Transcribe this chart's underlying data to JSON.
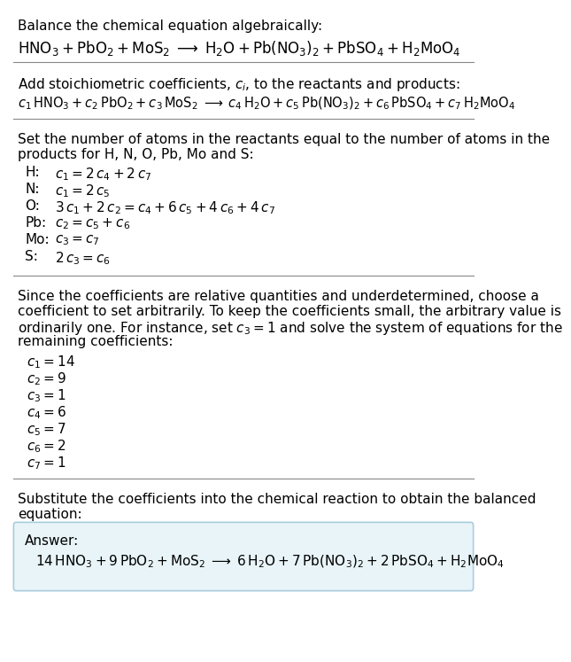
{
  "bg_color": "#ffffff",
  "text_color": "#000000",
  "section1_title": "Balance the chemical equation algebraically:",
  "section1_eq": "$\\mathrm{HNO_3 + PbO_2 + MoS_2 \\;\\longrightarrow\\; H_2O + Pb(NO_3)_2 + PbSO_4 + H_2MoO_4}$",
  "section2_title": "Add stoichiometric coefficients, $c_i$, to the reactants and products:",
  "section2_eq": "$c_1\\,\\mathrm{HNO_3} + c_2\\,\\mathrm{PbO_2} + c_3\\,\\mathrm{MoS_2} \\;\\longrightarrow\\; c_4\\,\\mathrm{H_2O} + c_5\\,\\mathrm{Pb(NO_3)_2} + c_6\\,\\mathrm{PbSO_4} + c_7\\,\\mathrm{H_2MoO_4}$",
  "section3_title": "Set the number of atoms in the reactants equal to the number of atoms in the\nproducts for H, N, O, Pb, Mo and S:",
  "equations": [
    [
      "H:",
      "$c_1 = 2\\,c_4 + 2\\,c_7$"
    ],
    [
      "N:",
      "$c_1 = 2\\,c_5$"
    ],
    [
      "O:",
      "$3\\,c_1 + 2\\,c_2 = c_4 + 6\\,c_5 + 4\\,c_6 + 4\\,c_7$"
    ],
    [
      "Pb:",
      "$c_2 = c_5 + c_6$"
    ],
    [
      "Mo:",
      "$c_3 = c_7$"
    ],
    [
      "S:",
      "$2\\,c_3 = c_6$"
    ]
  ],
  "section4_title": "Since the coefficients are relative quantities and underdetermined, choose a\ncoefficient to set arbitrarily. To keep the coefficients small, the arbitrary value is\nordinarily one. For instance, set $c_3 = 1$ and solve the system of equations for the\nremaining coefficients:",
  "coefficients": [
    "$c_1 = 14$",
    "$c_2 = 9$",
    "$c_3 = 1$",
    "$c_4 = 6$",
    "$c_5 = 7$",
    "$c_6 = 2$",
    "$c_7 = 1$"
  ],
  "section5_title": "Substitute the coefficients into the chemical reaction to obtain the balanced\nequation:",
  "answer_label": "Answer:",
  "answer_eq": "$14\\,\\mathrm{HNO_3} + 9\\,\\mathrm{PbO_2} + \\mathrm{MoS_2} \\;\\longrightarrow\\; 6\\,\\mathrm{H_2O} + 7\\,\\mathrm{Pb(NO_3)_2} + 2\\,\\mathrm{PbSO_4} + \\mathrm{H_2MoO_4}$",
  "answer_box_color": "#e8f4f8",
  "answer_box_edge": "#aaccdd"
}
